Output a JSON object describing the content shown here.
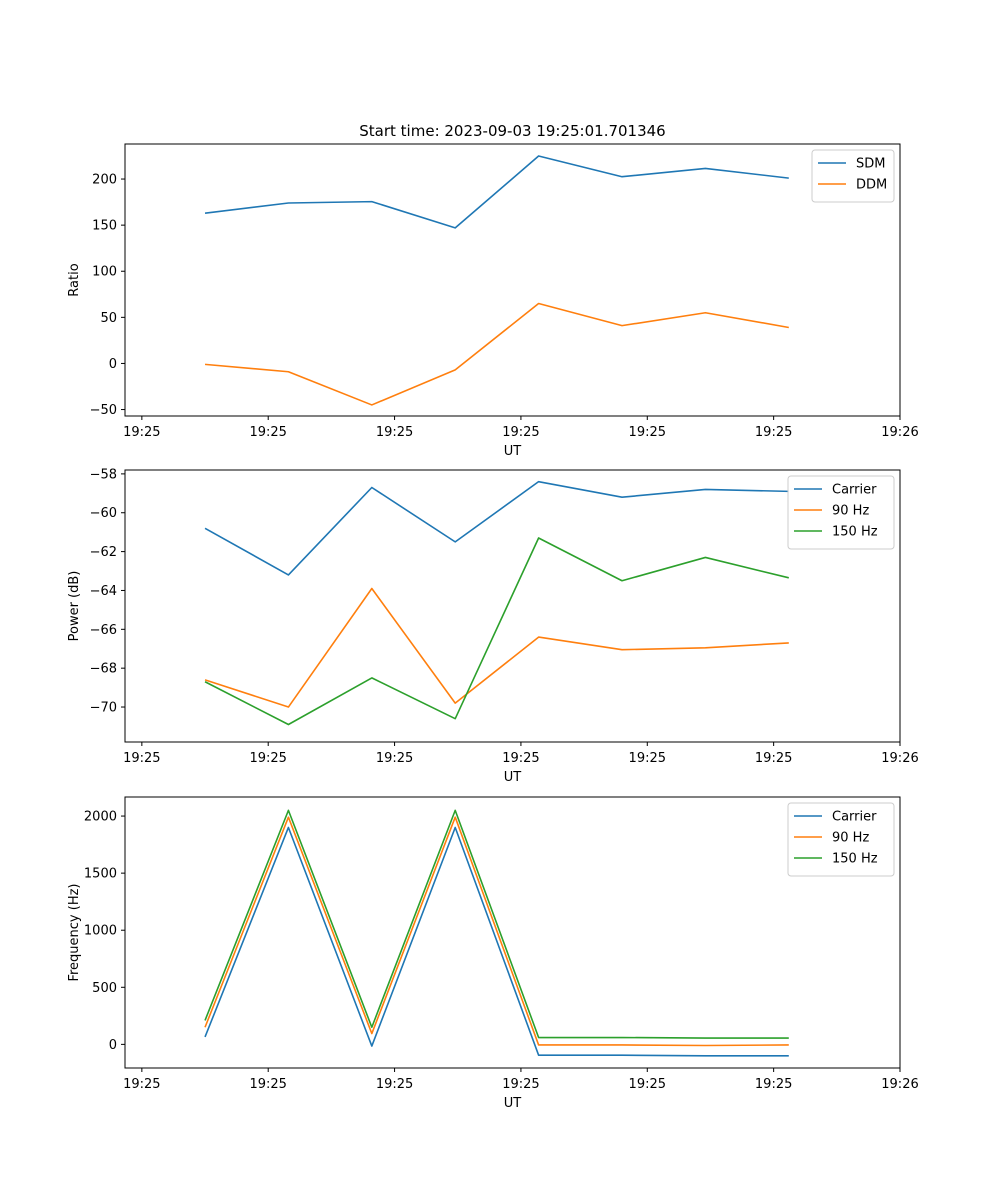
{
  "figure_title": "Start time: 2023-09-03 19:25:01.701346",
  "colors": {
    "blue": "#1f77b4",
    "orange": "#ff7f0e",
    "green": "#2ca02c"
  },
  "chart_data": [
    {
      "type": "line",
      "ylabel": "Ratio",
      "xlabel": "UT",
      "title": "Start time: 2023-09-03 19:25:01.701346",
      "xticks": [
        0,
        1.5,
        3,
        4.5,
        6,
        7.5,
        9
      ],
      "xtick_labels": [
        "19:25",
        "19:25",
        "19:25",
        "19:25",
        "19:25",
        "19:25",
        "19:26"
      ],
      "xlim": [
        -0.2,
        9.0
      ],
      "ylim": [
        -57,
        238
      ],
      "yticks": [
        -50,
        0,
        50,
        100,
        150,
        200
      ],
      "yticklabels": [
        "−50",
        "0",
        "50",
        "100",
        "150",
        "200"
      ],
      "x": [
        0.75,
        1.74,
        2.73,
        3.72,
        4.71,
        5.7,
        6.69,
        7.68
      ],
      "series": [
        {
          "name": "SDM",
          "color": "#1f77b4",
          "values": [
            163,
            174,
            175.5,
            147,
            225,
            202.5,
            211.5,
            201
          ]
        },
        {
          "name": "DDM",
          "color": "#ff7f0e",
          "values": [
            -1,
            -9,
            -45,
            -7,
            65,
            41,
            55,
            39
          ]
        }
      ],
      "legend_position": "upper-right"
    },
    {
      "type": "line",
      "ylabel": "Power (dB)",
      "xlabel": "UT",
      "xticks": [
        0,
        1.5,
        3,
        4.5,
        6,
        7.5,
        9
      ],
      "xtick_labels": [
        "19:25",
        "19:25",
        "19:25",
        "19:25",
        "19:25",
        "19:25",
        "19:26"
      ],
      "xlim": [
        -0.2,
        9.0
      ],
      "ylim": [
        -71.8,
        -57.8
      ],
      "yticks": [
        -70,
        -68,
        -66,
        -64,
        -62,
        -60,
        -58
      ],
      "yticklabels": [
        "−70",
        "−68",
        "−66",
        "−64",
        "−62",
        "−60",
        "−58"
      ],
      "x": [
        0.75,
        1.74,
        2.73,
        3.72,
        4.71,
        5.7,
        6.69,
        7.68
      ],
      "series": [
        {
          "name": "Carrier",
          "color": "#1f77b4",
          "values": [
            -60.8,
            -63.2,
            -58.7,
            -61.5,
            -58.4,
            -59.2,
            -58.8,
            -58.9
          ]
        },
        {
          "name": "90 Hz",
          "color": "#ff7f0e",
          "values": [
            -68.6,
            -70.0,
            -63.9,
            -69.8,
            -66.4,
            -67.05,
            -66.95,
            -66.7
          ]
        },
        {
          "name": "150 Hz",
          "color": "#2ca02c",
          "values": [
            -68.7,
            -70.9,
            -68.5,
            -70.6,
            -61.3,
            -63.5,
            -62.3,
            -63.35
          ]
        }
      ],
      "legend_position": "upper-right"
    },
    {
      "type": "line",
      "ylabel": "Frequency (Hz)",
      "xlabel": "UT",
      "xticks": [
        0,
        1.5,
        3,
        4.5,
        6,
        7.5,
        9
      ],
      "xtick_labels": [
        "19:25",
        "19:25",
        "19:25",
        "19:25",
        "19:25",
        "19:25",
        "19:26"
      ],
      "xlim": [
        -0.2,
        9.0
      ],
      "ylim": [
        -207,
        2167
      ],
      "yticks": [
        0,
        500,
        1000,
        1500,
        2000
      ],
      "yticklabels": [
        "0",
        "500",
        "1000",
        "1500",
        "2000"
      ],
      "x": [
        0.75,
        1.74,
        2.73,
        3.72,
        4.71,
        5.7,
        6.69,
        7.68
      ],
      "series": [
        {
          "name": "Carrier",
          "color": "#1f77b4",
          "values": [
            65,
            1900,
            -15,
            1900,
            -95,
            -95,
            -100,
            -100
          ]
        },
        {
          "name": "90 Hz",
          "color": "#ff7f0e",
          "values": [
            150,
            1990,
            95,
            1990,
            -5,
            -5,
            -10,
            -5
          ]
        },
        {
          "name": "150 Hz",
          "color": "#2ca02c",
          "values": [
            210,
            2050,
            150,
            2050,
            60,
            60,
            55,
            55
          ]
        }
      ],
      "legend_position": "upper-right"
    }
  ]
}
